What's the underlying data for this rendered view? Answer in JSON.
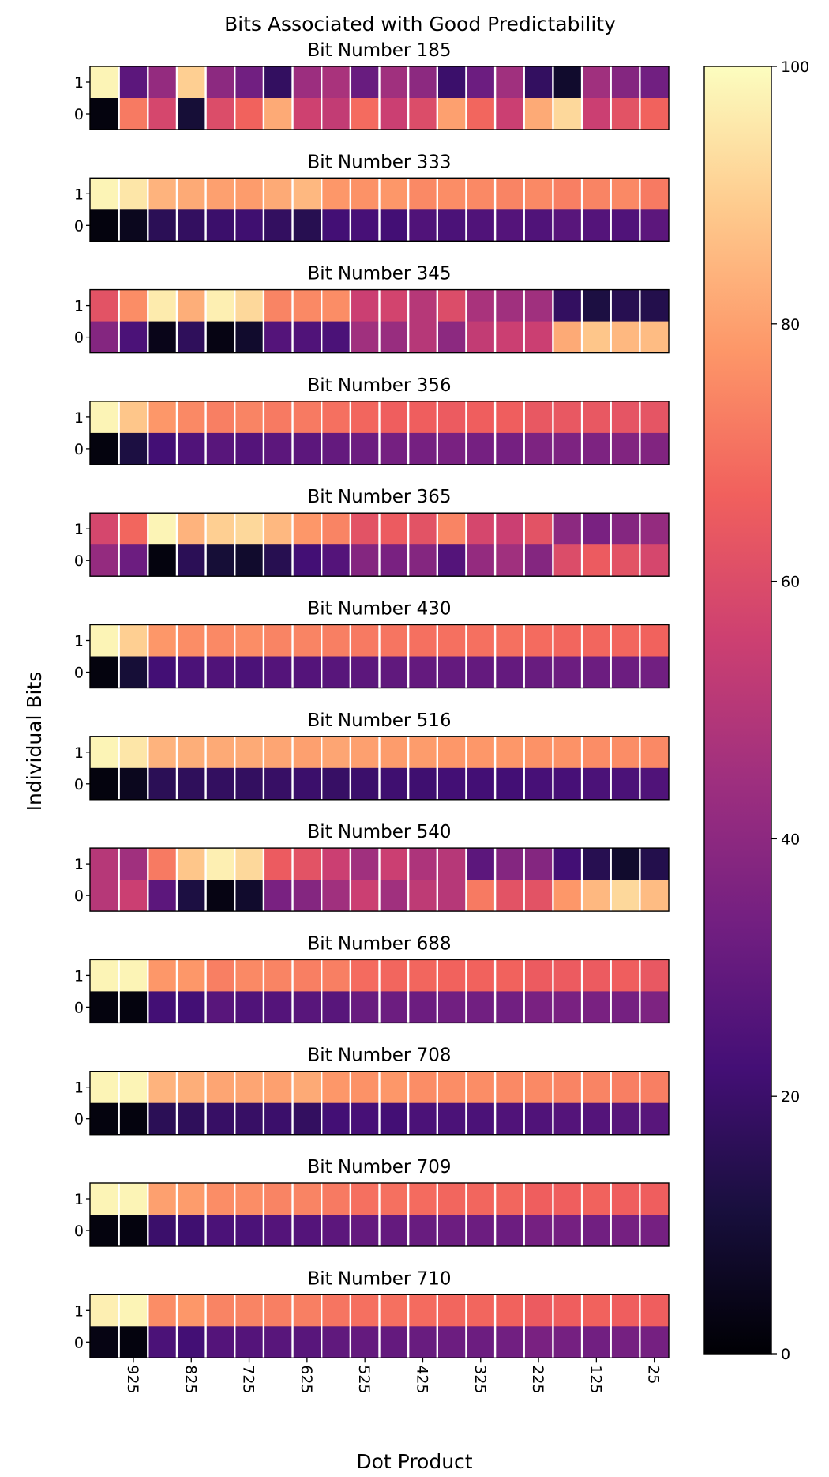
{
  "figure": {
    "suptitle": "Bits Associated with Good Predictability",
    "ylabel": "Individual Bits",
    "xlabel": "Dot Product",
    "row_labels": [
      "1",
      "0"
    ],
    "x_tick_labels": [
      "925",
      "825",
      "725",
      "625",
      "525",
      "425",
      "325",
      "225",
      "125",
      "25"
    ],
    "colormap": "magma",
    "colormap_stops": [
      "#000004",
      "#180f3d",
      "#440f76",
      "#721f81",
      "#9e2f7f",
      "#cd4071",
      "#f1605d",
      "#fd9668",
      "#feca8d",
      "#fcfdbf"
    ]
  },
  "chart_data": {
    "type": "heatmap",
    "title": "Bits Associated with Good Predictability",
    "xlabel": "Dot Product",
    "ylabel": "Individual Bits",
    "x_bins": [
      "975",
      "925",
      "875",
      "825",
      "775",
      "725",
      "675",
      "625",
      "575",
      "525",
      "475",
      "425",
      "375",
      "325",
      "275",
      "225",
      "175",
      "125",
      "75",
      "25"
    ],
    "x_ticks": [
      "925",
      "825",
      "725",
      "625",
      "525",
      "425",
      "325",
      "225",
      "125",
      "25"
    ],
    "rows": [
      "1",
      "0"
    ],
    "colorbar": {
      "range": [
        0,
        100
      ],
      "ticks": [
        0,
        20,
        40,
        60,
        80,
        100
      ],
      "colormap": "magma"
    },
    "panels": [
      {
        "title": "Bit Number 185",
        "one": [
          98,
          28,
          42,
          90,
          40,
          33,
          18,
          44,
          47,
          31,
          45,
          40,
          20,
          32,
          45,
          18,
          8,
          45,
          38,
          33
        ],
        "zero": [
          2,
          72,
          58,
          10,
          60,
          67,
          82,
          56,
          53,
          69,
          55,
          60,
          80,
          68,
          55,
          82,
          92,
          55,
          62,
          67
        ]
      },
      {
        "title": "Bit Number 333",
        "one": [
          98,
          95,
          84,
          82,
          80,
          79,
          82,
          85,
          78,
          77,
          78,
          75,
          76,
          75,
          74,
          75,
          73,
          74,
          75,
          72
        ],
        "zero": [
          2,
          5,
          16,
          18,
          20,
          21,
          18,
          15,
          22,
          23,
          22,
          25,
          24,
          25,
          26,
          25,
          27,
          26,
          25,
          28
        ]
      },
      {
        "title": "Bit Number 345",
        "one": [
          62,
          76,
          96,
          83,
          97,
          92,
          74,
          75,
          76,
          55,
          57,
          50,
          60,
          47,
          45,
          45,
          18,
          12,
          15,
          14
        ],
        "zero": [
          38,
          24,
          4,
          17,
          3,
          8,
          26,
          25,
          24,
          45,
          43,
          50,
          40,
          53,
          55,
          55,
          82,
          88,
          85,
          86
        ]
      },
      {
        "title": "Bit Number 356",
        "one": [
          98,
          88,
          78,
          75,
          73,
          74,
          72,
          72,
          70,
          68,
          66,
          66,
          65,
          66,
          66,
          64,
          64,
          64,
          63,
          63
        ],
        "zero": [
          2,
          12,
          22,
          25,
          27,
          26,
          28,
          28,
          30,
          32,
          34,
          34,
          35,
          34,
          34,
          36,
          36,
          36,
          37,
          37
        ]
      },
      {
        "title": "Bit Number 365",
        "one": [
          58,
          68,
          98,
          84,
          90,
          92,
          85,
          78,
          74,
          62,
          65,
          62,
          74,
          58,
          55,
          62,
          40,
          35,
          38,
          42
        ],
        "zero": [
          42,
          32,
          2,
          16,
          10,
          8,
          15,
          22,
          26,
          38,
          35,
          38,
          26,
          42,
          45,
          38,
          60,
          65,
          62,
          58
        ]
      },
      {
        "title": "Bit Number 430",
        "one": [
          98,
          90,
          78,
          76,
          75,
          76,
          74,
          74,
          73,
          72,
          71,
          70,
          70,
          70,
          70,
          69,
          68,
          68,
          68,
          67
        ],
        "zero": [
          2,
          10,
          22,
          24,
          25,
          24,
          26,
          26,
          27,
          28,
          29,
          30,
          30,
          30,
          30,
          31,
          32,
          32,
          32,
          33
        ]
      },
      {
        "title": "Bit Number 516",
        "one": [
          98,
          95,
          84,
          83,
          82,
          82,
          81,
          80,
          81,
          80,
          79,
          79,
          78,
          78,
          78,
          77,
          77,
          76,
          76,
          75
        ],
        "zero": [
          2,
          5,
          16,
          17,
          18,
          18,
          19,
          20,
          19,
          20,
          21,
          21,
          22,
          22,
          22,
          23,
          23,
          24,
          24,
          25
        ]
      },
      {
        "title": "Bit Number 540",
        "one": [
          50,
          45,
          72,
          88,
          97,
          92,
          65,
          62,
          55,
          45,
          55,
          48,
          50,
          28,
          38,
          38,
          22,
          15,
          8,
          14
        ],
        "zero": [
          50,
          55,
          28,
          12,
          3,
          8,
          35,
          38,
          45,
          55,
          45,
          52,
          50,
          72,
          62,
          62,
          78,
          85,
          92,
          86
        ]
      },
      {
        "title": "Bit Number 688",
        "one": [
          98,
          98,
          78,
          78,
          73,
          75,
          74,
          73,
          73,
          69,
          68,
          68,
          67,
          67,
          67,
          65,
          65,
          65,
          66,
          64
        ],
        "zero": [
          2,
          2,
          22,
          22,
          27,
          25,
          26,
          27,
          27,
          31,
          32,
          32,
          33,
          33,
          33,
          35,
          35,
          35,
          34,
          36
        ]
      },
      {
        "title": "Bit Number 708",
        "one": [
          98,
          98,
          84,
          83,
          81,
          81,
          80,
          82,
          78,
          77,
          78,
          76,
          76,
          76,
          75,
          75,
          74,
          74,
          73,
          73
        ],
        "zero": [
          2,
          2,
          16,
          17,
          19,
          19,
          20,
          18,
          22,
          23,
          22,
          24,
          24,
          24,
          25,
          25,
          26,
          26,
          27,
          27
        ]
      },
      {
        "title": "Bit Number 709",
        "one": [
          98,
          98,
          80,
          79,
          76,
          76,
          74,
          74,
          72,
          70,
          70,
          69,
          68,
          68,
          68,
          66,
          66,
          67,
          66,
          66
        ],
        "zero": [
          2,
          2,
          20,
          21,
          24,
          24,
          26,
          26,
          28,
          30,
          30,
          31,
          32,
          32,
          32,
          34,
          34,
          33,
          34,
          34
        ]
      },
      {
        "title": "Bit Number 710",
        "one": [
          97,
          98,
          76,
          78,
          74,
          74,
          73,
          73,
          71,
          70,
          70,
          69,
          68,
          68,
          67,
          65,
          66,
          67,
          66,
          66
        ],
        "zero": [
          3,
          2,
          24,
          22,
          26,
          26,
          27,
          27,
          29,
          30,
          30,
          31,
          32,
          32,
          33,
          35,
          34,
          33,
          34,
          34
        ]
      }
    ]
  }
}
